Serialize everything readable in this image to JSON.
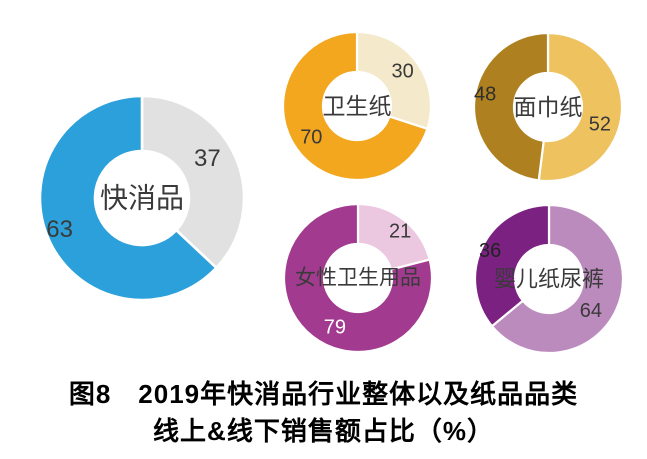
{
  "figure": {
    "caption": {
      "line1": "图8　2019年快消品行业整体以及纸品品类",
      "line2": "线上&线下销售额占比（%）"
    }
  },
  "chart_data": {
    "type": "pie",
    "variant": "donut",
    "unit": "%",
    "description_numbers_are_percent_share": true,
    "charts": [
      {
        "id": "fmcg",
        "center_label": "快消品",
        "start_angle_deg": 0,
        "segments": [
          {
            "value": 37,
            "color": "#e1e1e1",
            "label_color": "#3a3a3a"
          },
          {
            "value": 63,
            "color": "#2ba0db",
            "label_color": "#3a3a3a"
          }
        ]
      },
      {
        "id": "toilet-paper",
        "center_label": "卫生纸",
        "start_angle_deg": 0,
        "segments": [
          {
            "value": 30,
            "color": "#f5e9cb",
            "label_color": "#3a3a3a"
          },
          {
            "value": 70,
            "color": "#f2a71f",
            "label_color": "#3a3a3a"
          }
        ]
      },
      {
        "id": "facial-tissue",
        "center_label": "面巾纸",
        "start_angle_deg": 0,
        "segments": [
          {
            "value": 52,
            "color": "#edc25f",
            "label_color": "#3a3a3a"
          },
          {
            "value": 48,
            "color": "#ae801f",
            "label_color": "#2e2e2e"
          }
        ]
      },
      {
        "id": "feminine-care",
        "center_label": "女性卫生用品",
        "start_angle_deg": 0,
        "segments": [
          {
            "value": 21,
            "color": "#ebc7e0",
            "label_color": "#3a3a3a"
          },
          {
            "value": 79,
            "color": "#a23b8f",
            "label_color": "#ffffff"
          }
        ]
      },
      {
        "id": "baby-diapers",
        "center_label": "婴儿纸尿裤",
        "start_angle_deg": 0,
        "segments": [
          {
            "value": 64,
            "color": "#bc8bbe",
            "label_color": "#3a3a3a"
          },
          {
            "value": 36,
            "color": "#7b2182",
            "label_color": "#222222"
          }
        ]
      }
    ]
  }
}
